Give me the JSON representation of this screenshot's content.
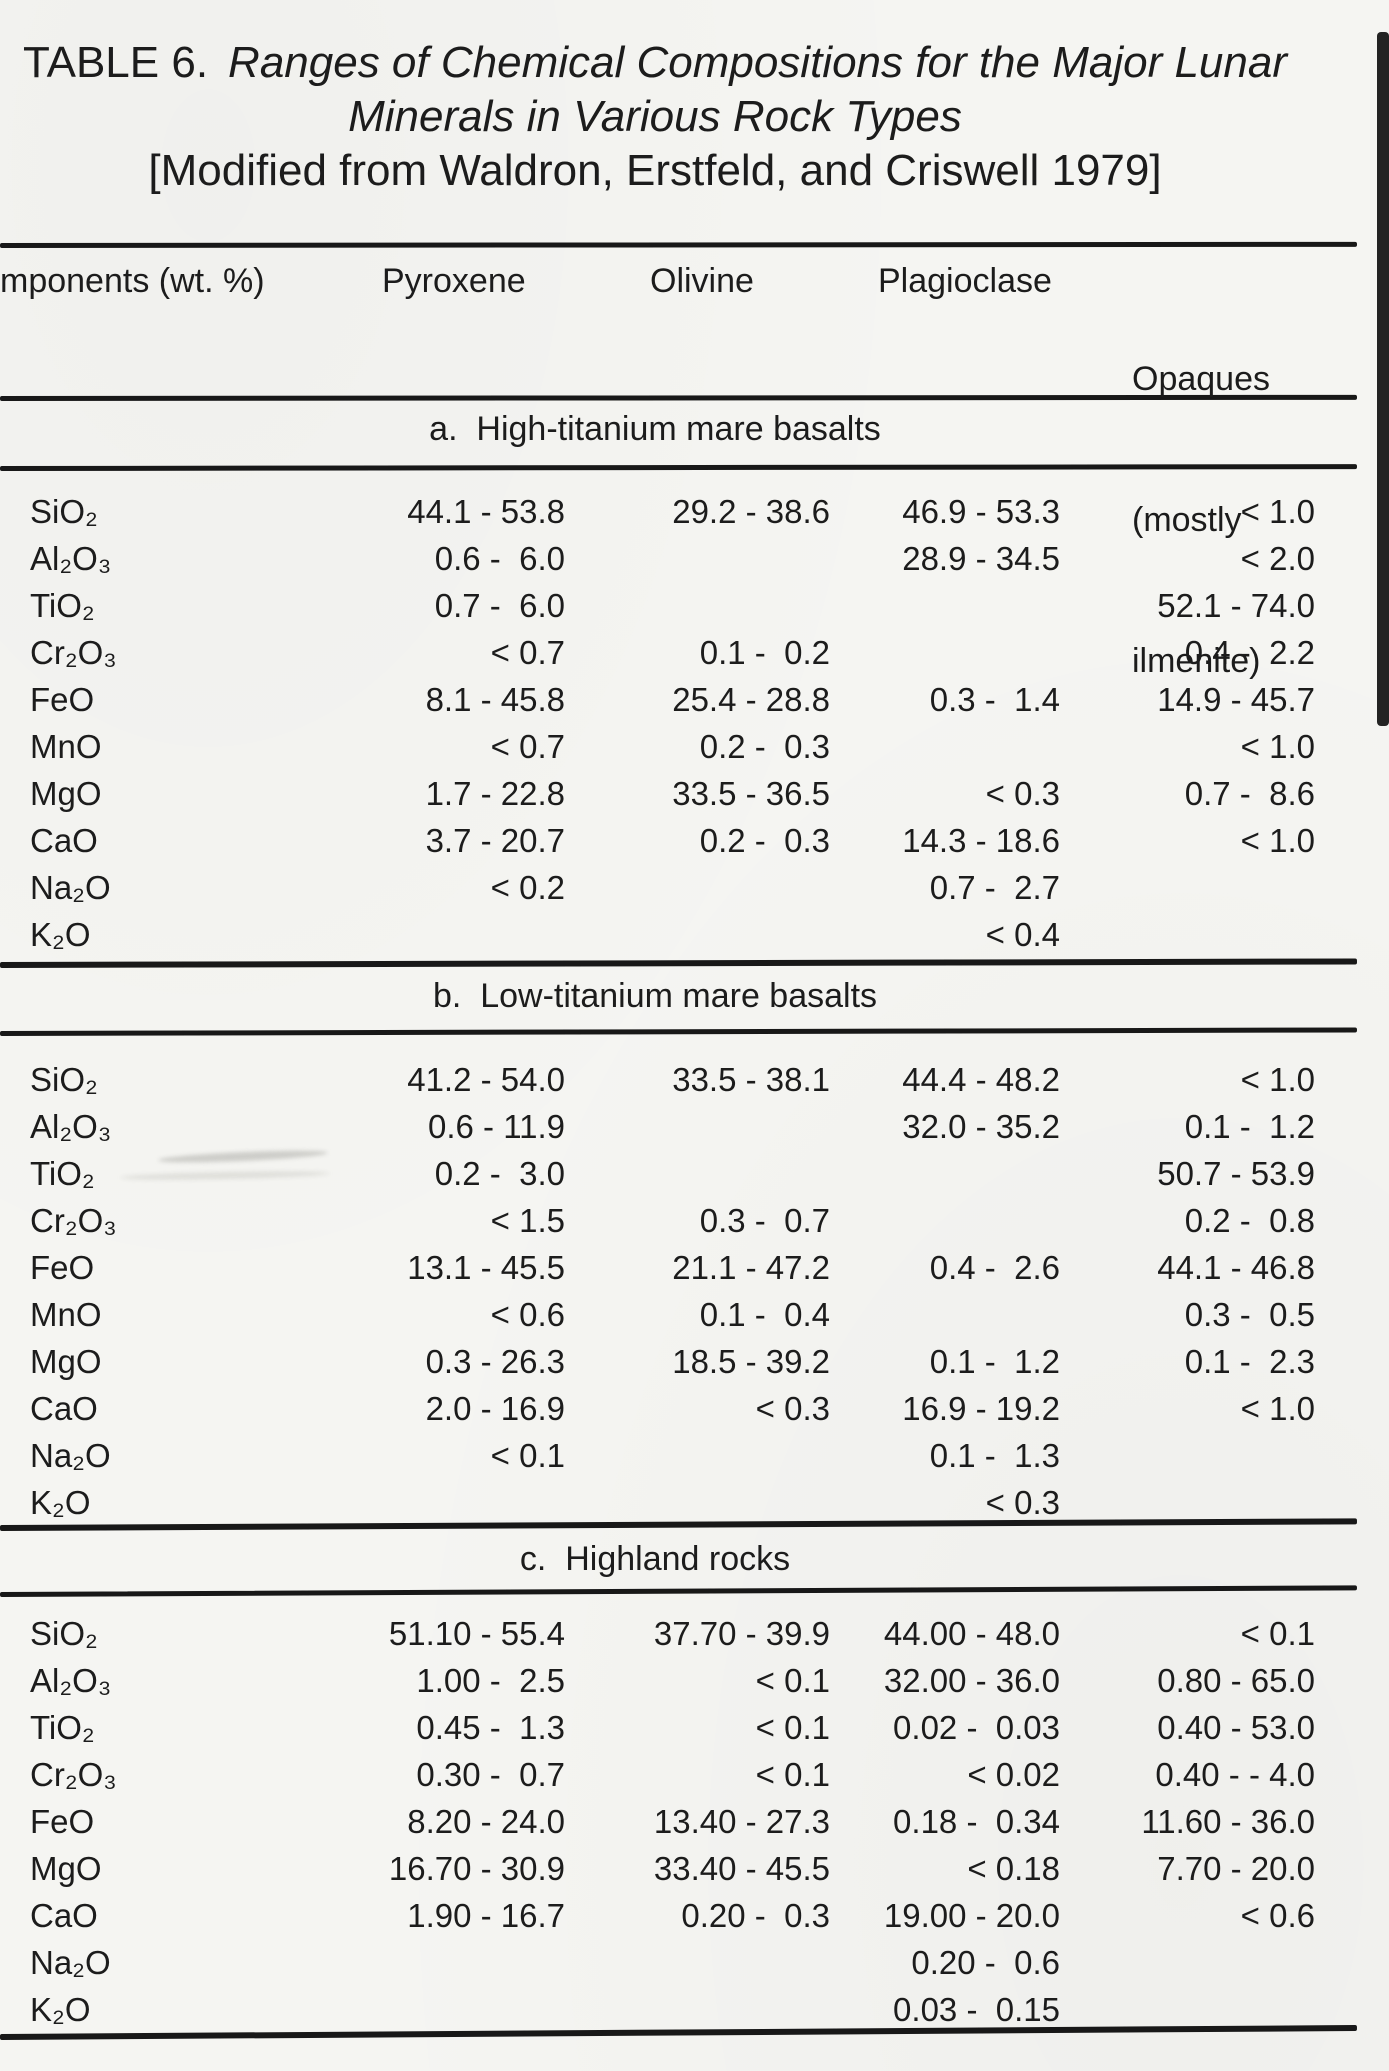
{
  "colors": {
    "paper": "#f5f5f2",
    "ink": "#1c1c1c",
    "edge_artifact": "#232323"
  },
  "title": {
    "prefix": "TABLE 6.",
    "line1_italic": "Ranges of Chemical Compositions for the Major Lunar",
    "line2_italic": "Minerals in Various Rock Types",
    "source_line": "[Modified from Waldron, Erstfeld, and Criswell 1979]"
  },
  "table": {
    "header": {
      "components": "mponents (wt. %)",
      "pyroxene": "Pyroxene",
      "olivine": "Olivine",
      "plagioclase": "Plagioclase",
      "opaques_line1": "Opaques",
      "opaques_line2": "(mostly",
      "opaques_line3": "ilmenite)"
    },
    "sections": [
      {
        "heading": "a.  High-titanium mare basalts",
        "rows": [
          {
            "label": "SiO₂",
            "pyroxene": "44.1 - 53.8",
            "olivine": "29.2 - 38.6",
            "plagioclase": "46.9 - 53.3",
            "opaques": "< 1.0"
          },
          {
            "label": "Al₂O₃",
            "pyroxene": "0.6 -  6.0",
            "olivine": "",
            "plagioclase": "28.9 - 34.5",
            "opaques": "< 2.0"
          },
          {
            "label": "TiO₂",
            "pyroxene": "0.7 -  6.0",
            "olivine": "",
            "plagioclase": "",
            "opaques": "52.1 - 74.0"
          },
          {
            "label": "Cr₂O₃",
            "pyroxene": "< 0.7",
            "olivine": "0.1 -  0.2",
            "plagioclase": "",
            "opaques": "0.4 -  2.2"
          },
          {
            "label": "FeO",
            "pyroxene": "8.1 - 45.8",
            "olivine": "25.4 - 28.8",
            "plagioclase": "0.3 -  1.4",
            "opaques": "14.9 - 45.7"
          },
          {
            "label": "MnO",
            "pyroxene": "< 0.7",
            "olivine": "0.2 -  0.3",
            "plagioclase": "",
            "opaques": "< 1.0"
          },
          {
            "label": "MgO",
            "pyroxene": "1.7 - 22.8",
            "olivine": "33.5 - 36.5",
            "plagioclase": "< 0.3",
            "opaques": "0.7 -  8.6"
          },
          {
            "label": "CaO",
            "pyroxene": "3.7 - 20.7",
            "olivine": "0.2 -  0.3",
            "plagioclase": "14.3 - 18.6",
            "opaques": "< 1.0"
          },
          {
            "label": "Na₂O",
            "pyroxene": "< 0.2",
            "olivine": "",
            "plagioclase": "0.7 -  2.7",
            "opaques": ""
          },
          {
            "label": "K₂O",
            "pyroxene": "",
            "olivine": "",
            "plagioclase": "< 0.4",
            "opaques": ""
          }
        ]
      },
      {
        "heading": "b.  Low-titanium mare basalts",
        "rows": [
          {
            "label": "SiO₂",
            "pyroxene": "41.2 - 54.0",
            "olivine": "33.5 - 38.1",
            "plagioclase": "44.4 - 48.2",
            "opaques": "< 1.0"
          },
          {
            "label": "Al₂O₃",
            "pyroxene": "0.6 - 11.9",
            "olivine": "",
            "plagioclase": "32.0 - 35.2",
            "opaques": "0.1 -  1.2"
          },
          {
            "label": "TiO₂",
            "pyroxene": "0.2 -  3.0",
            "olivine": "",
            "plagioclase": "",
            "opaques": "50.7 - 53.9"
          },
          {
            "label": "Cr₂O₃",
            "pyroxene": "< 1.5",
            "olivine": "0.3 -  0.7",
            "plagioclase": "",
            "opaques": "0.2 -  0.8"
          },
          {
            "label": "FeO",
            "pyroxene": "13.1 - 45.5",
            "olivine": "21.1 - 47.2",
            "plagioclase": "0.4 -  2.6",
            "opaques": "44.1 - 46.8"
          },
          {
            "label": "MnO",
            "pyroxene": "< 0.6",
            "olivine": "0.1 -  0.4",
            "plagioclase": "",
            "opaques": "0.3 -  0.5"
          },
          {
            "label": "MgO",
            "pyroxene": "0.3 - 26.3",
            "olivine": "18.5 - 39.2",
            "plagioclase": "0.1 -  1.2",
            "opaques": "0.1 -  2.3"
          },
          {
            "label": "CaO",
            "pyroxene": "2.0 - 16.9",
            "olivine": "< 0.3",
            "plagioclase": "16.9 - 19.2",
            "opaques": "< 1.0"
          },
          {
            "label": "Na₂O",
            "pyroxene": "< 0.1",
            "olivine": "",
            "plagioclase": "0.1 -  1.3",
            "opaques": ""
          },
          {
            "label": "K₂O",
            "pyroxene": "",
            "olivine": "",
            "plagioclase": "< 0.3",
            "opaques": ""
          }
        ]
      },
      {
        "heading": "c.  Highland rocks",
        "rows": [
          {
            "label": "SiO₂",
            "pyroxene": "51.10 - 55.4",
            "olivine": "37.70 - 39.9",
            "plagioclase": "44.00 - 48.0",
            "opaques": "< 0.1"
          },
          {
            "label": "Al₂O₃",
            "pyroxene": "1.00 -  2.5",
            "olivine": "< 0.1",
            "plagioclase": "32.00 - 36.0",
            "opaques": "0.80 - 65.0"
          },
          {
            "label": "TiO₂",
            "pyroxene": "0.45 -  1.3",
            "olivine": "< 0.1",
            "plagioclase": "0.02 -  0.03",
            "opaques": "0.40 - 53.0"
          },
          {
            "label": "Cr₂O₃",
            "pyroxene": "0.30 -  0.7",
            "olivine": "< 0.1",
            "plagioclase": "< 0.02",
            "opaques": "0.40 - - 4.0"
          },
          {
            "label": "FeO",
            "pyroxene": "8.20 - 24.0",
            "olivine": "13.40 - 27.3",
            "plagioclase": "0.18 -  0.34",
            "opaques": "11.60 - 36.0"
          },
          {
            "label": "MgO",
            "pyroxene": "16.70 - 30.9",
            "olivine": "33.40 - 45.5",
            "plagioclase": "< 0.18",
            "opaques": "7.70 - 20.0"
          },
          {
            "label": "CaO",
            "pyroxene": "1.90 - 16.7",
            "olivine": "0.20 -  0.3",
            "plagioclase": "19.00 - 20.0",
            "opaques": "< 0.6"
          },
          {
            "label": "Na₂O",
            "pyroxene": "",
            "olivine": "",
            "plagioclase": "0.20 -  0.6",
            "opaques": ""
          },
          {
            "label": "K₂O",
            "pyroxene": "",
            "olivine": "",
            "plagioclase": "0.03 -  0.15",
            "opaques": ""
          }
        ]
      }
    ]
  }
}
